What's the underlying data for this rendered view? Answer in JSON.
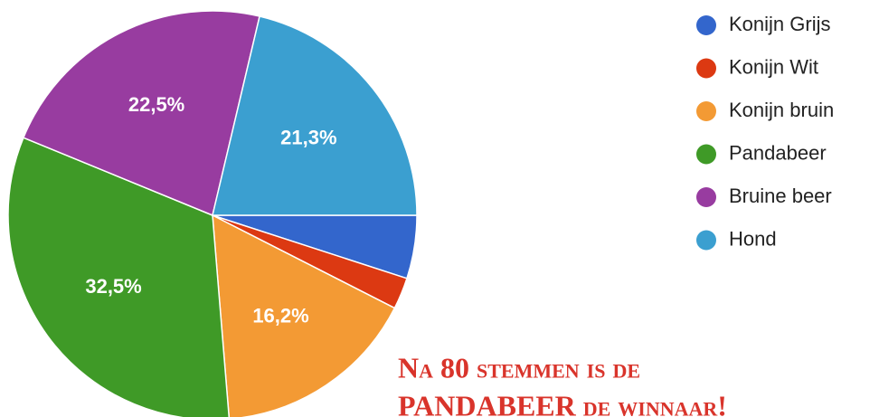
{
  "chart_data": {
    "type": "pie",
    "categories": [
      "Konijn Grijs",
      "Konijn Wit",
      "Konijn bruin",
      "Pandabeer",
      "Bruine beer",
      "Hond"
    ],
    "values": [
      5,
      2.5,
      16.2,
      32.5,
      22.5,
      21.3
    ],
    "value_labels": [
      null,
      null,
      "16,2%",
      "32,5%",
      "22,5%",
      "21,3%"
    ],
    "colors": [
      "#3366cc",
      "#dc3912",
      "#f39a34",
      "#3f9a27",
      "#983ca0",
      "#3b9fd0"
    ],
    "legend": "right",
    "annotation": [
      "Na 80 stemmen is de",
      "PANDABEER de winnaar!"
    ]
  }
}
